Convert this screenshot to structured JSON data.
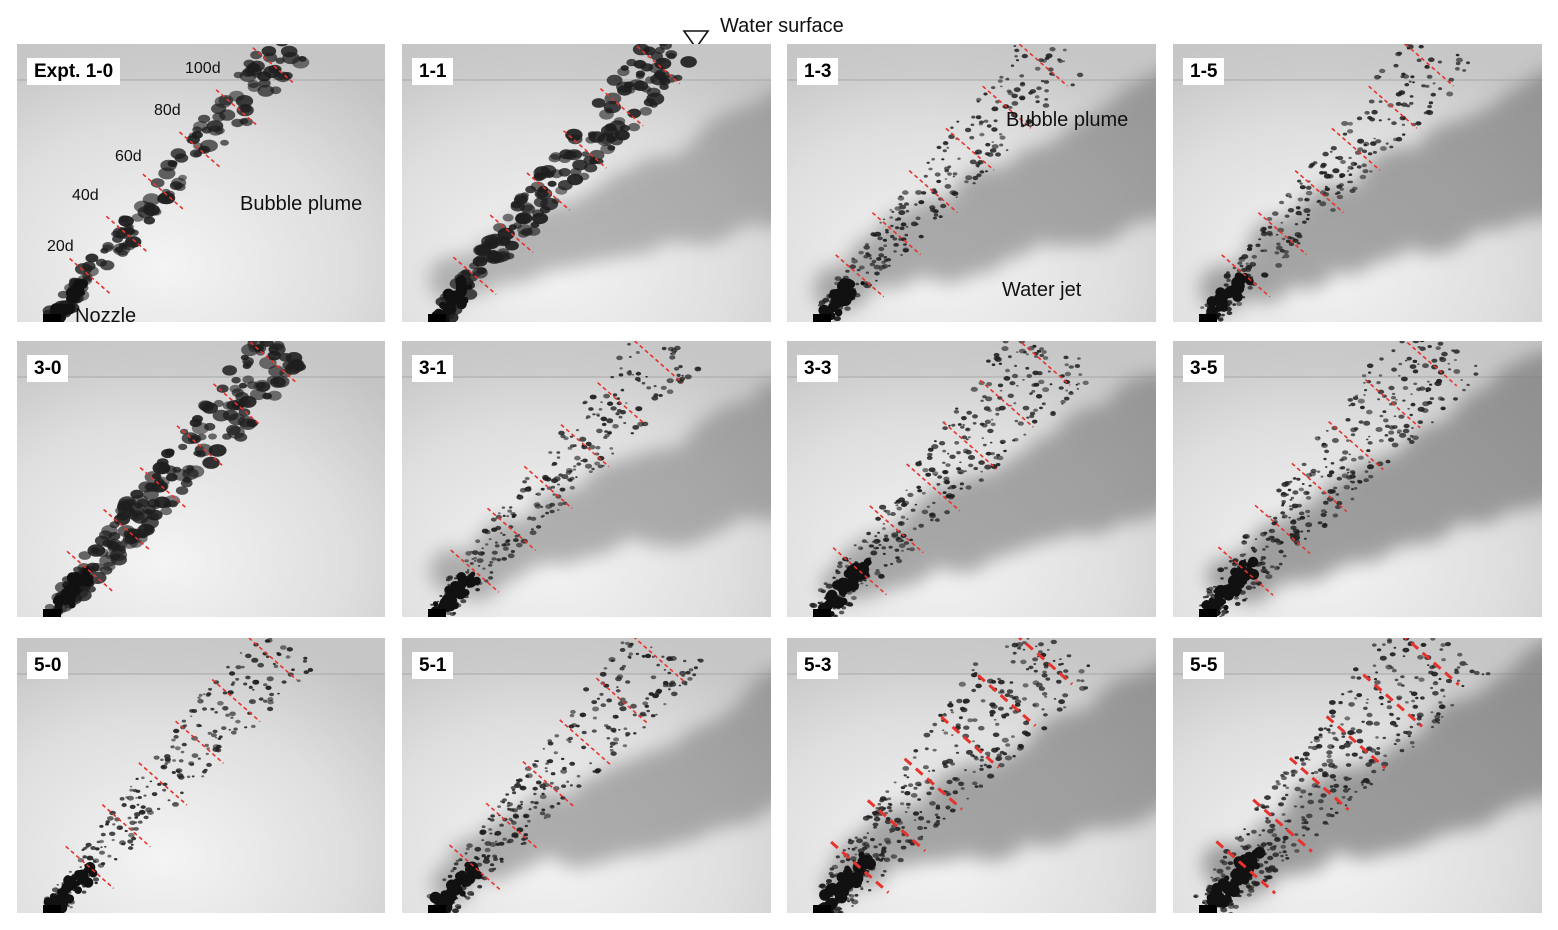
{
  "header": {
    "water_surface_label": "Water surface",
    "marker_icon": "inverted-triangle-icon"
  },
  "colors": {
    "marker": "#e8322c",
    "background": "#ffffff",
    "panel_light": "#e6e6e6",
    "bubble": "#1e1e1e",
    "jet": "#7a7a7a"
  },
  "panels": [
    {
      "id": "p1-0",
      "label": "Expt. 1-0",
      "bubble_level": 0.25,
      "jet_level": 0.0
    },
    {
      "id": "p1-1",
      "label": "1-1",
      "bubble_level": 0.35,
      "jet_level": 0.35
    },
    {
      "id": "p1-3",
      "label": "1-3",
      "bubble_level": 0.55,
      "jet_level": 0.55
    },
    {
      "id": "p1-5",
      "label": "1-5",
      "bubble_level": 0.55,
      "jet_level": 0.65
    },
    {
      "id": "p3-0",
      "label": "3-0",
      "bubble_level": 0.45,
      "jet_level": 0.0
    },
    {
      "id": "p3-1",
      "label": "3-1",
      "bubble_level": 0.55,
      "jet_level": 0.45
    },
    {
      "id": "p3-3",
      "label": "3-3",
      "bubble_level": 0.75,
      "jet_level": 0.6
    },
    {
      "id": "p3-5",
      "label": "3-5",
      "bubble_level": 0.8,
      "jet_level": 0.75
    },
    {
      "id": "p5-0",
      "label": "5-0",
      "bubble_level": 0.55,
      "jet_level": 0.0
    },
    {
      "id": "p5-1",
      "label": "5-1",
      "bubble_level": 0.65,
      "jet_level": 0.5
    },
    {
      "id": "p5-3",
      "label": "5-3",
      "bubble_level": 0.9,
      "jet_level": 0.65
    },
    {
      "id": "p5-5",
      "label": "5-5",
      "bubble_level": 0.95,
      "jet_level": 0.8
    }
  ],
  "annotations": {
    "distance_labels": [
      "20d",
      "40d",
      "60d",
      "80d",
      "100d"
    ],
    "nozzle": "Nozzle",
    "bubble_plume_a": "Bubble plume",
    "bubble_plume_b": "Bubble plume",
    "water_jet": "Water jet"
  }
}
